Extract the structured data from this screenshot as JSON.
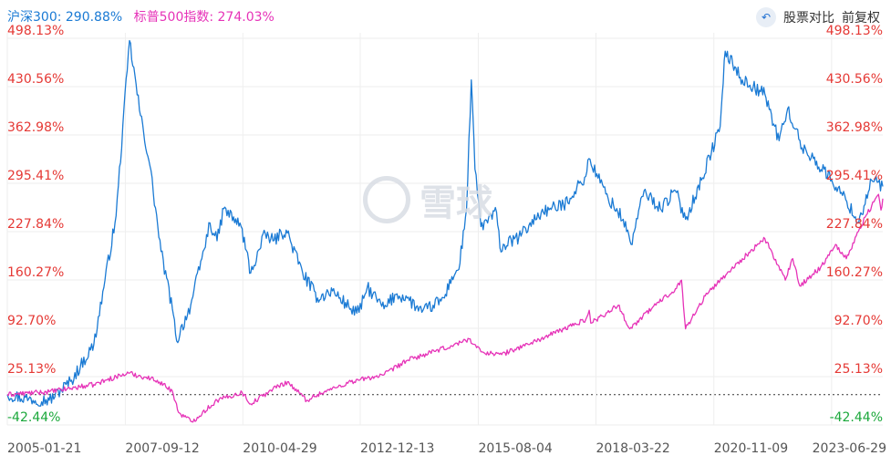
{
  "legend": {
    "hs300": "沪深300: 290.88%",
    "sp500": "标普500指数: 274.03%"
  },
  "controls": {
    "stock_compare": "股票对比",
    "adjust": "前复权"
  },
  "watermark": "雪球",
  "colors": {
    "hs300": "#1a7ad4",
    "sp500": "#e633b8",
    "positive_label": "#e53935",
    "negative_label": "#1ba83b",
    "grid": "#eeeeee",
    "baseline": "#333333"
  },
  "chart_data": {
    "type": "line",
    "ylim": [
      -42.44,
      498.13
    ],
    "y_ticks": [
      "498.13%",
      "430.56%",
      "362.98%",
      "295.41%",
      "227.84%",
      "160.27%",
      "92.70%",
      "25.13%",
      "-42.44%"
    ],
    "x_ticks": [
      "2005-01-21",
      "2007-09-12",
      "2010-04-29",
      "2012-12-13",
      "2015-08-04",
      "2018-03-22",
      "2020-11-09",
      "2023-06-29"
    ],
    "xlim": [
      "2005-01-21",
      "2024-08-20"
    ],
    "series": [
      {
        "name": "沪深300",
        "color": "#1a7ad4",
        "x": [
          "2005-01-21",
          "2005-07-15",
          "2005-12-30",
          "2006-06-30",
          "2006-12-29",
          "2007-03-30",
          "2007-06-29",
          "2007-10-16",
          "2008-01-14",
          "2008-03-31",
          "2008-06-30",
          "2008-09-30",
          "2008-11-04",
          "2009-02-27",
          "2009-05-29",
          "2009-08-04",
          "2009-09-30",
          "2009-11-24",
          "2010-04-15",
          "2010-07-02",
          "2010-10-29",
          "2010-12-31",
          "2011-04-18",
          "2011-08-31",
          "2011-12-30",
          "2012-04-30",
          "2012-09-28",
          "2012-12-03",
          "2013-02-08",
          "2013-06-25",
          "2013-09-30",
          "2013-12-31",
          "2014-04-30",
          "2014-07-31",
          "2014-10-31",
          "2014-12-31",
          "2015-02-27",
          "2015-04-30",
          "2015-06-08",
          "2015-07-08",
          "2015-08-26",
          "2015-12-31",
          "2016-01-28",
          "2016-06-30",
          "2016-12-30",
          "2017-06-30",
          "2017-12-29",
          "2018-01-24",
          "2018-06-29",
          "2018-10-31",
          "2019-01-03",
          "2019-04-19",
          "2019-08-30",
          "2019-12-31",
          "2020-03-23",
          "2020-07-31",
          "2020-12-31",
          "2021-02-10",
          "2021-06-30",
          "2021-12-31",
          "2022-04-26",
          "2022-07-05",
          "2022-10-31",
          "2023-01-31",
          "2023-06-30",
          "2023-10-31",
          "2024-02-05",
          "2024-05-20",
          "2024-08-20"
        ],
        "values": [
          0,
          -6,
          -8,
          20,
          70,
          160,
          250,
          495,
          390,
          320,
          200,
          120,
          75,
          125,
          190,
          240,
          215,
          260,
          235,
          170,
          225,
          215,
          230,
          170,
          135,
          145,
          120,
          115,
          150,
          120,
          140,
          135,
          115,
          125,
          135,
          165,
          175,
          260,
          440,
          315,
          235,
          255,
          205,
          220,
          255,
          265,
          305,
          330,
          275,
          245,
          210,
          285,
          260,
          285,
          245,
          300,
          375,
          480,
          440,
          420,
          355,
          400,
          345,
          330,
          300,
          270,
          240,
          300,
          291
        ]
      },
      {
        "name": "标普500指数",
        "color": "#e633b8",
        "x": [
          "2005-01-21",
          "2005-12-30",
          "2006-12-29",
          "2007-06-29",
          "2007-10-09",
          "2008-05-30",
          "2008-09-30",
          "2008-11-20",
          "2009-03-09",
          "2009-09-30",
          "2010-04-23",
          "2010-07-02",
          "2010-12-31",
          "2011-04-29",
          "2011-10-03",
          "2011-12-30",
          "2012-09-28",
          "2013-06-28",
          "2013-12-31",
          "2014-12-31",
          "2015-05-21",
          "2015-08-25",
          "2016-02-11",
          "2016-12-30",
          "2017-12-29",
          "2018-01-26",
          "2018-02-08",
          "2018-09-20",
          "2018-12-24",
          "2019-06-28",
          "2019-12-31",
          "2020-02-19",
          "2020-03-23",
          "2020-08-31",
          "2020-12-31",
          "2021-06-30",
          "2021-12-31",
          "2022-06-16",
          "2022-08-16",
          "2022-10-12",
          "2023-03-31",
          "2023-07-31",
          "2023-10-27",
          "2024-03-28",
          "2024-07-16",
          "2024-08-05",
          "2024-08-20"
        ],
        "values": [
          0,
          4,
          14,
          25,
          30,
          20,
          5,
          -25,
          -38,
          -8,
          3,
          -13,
          8,
          18,
          -8,
          0,
          18,
          28,
          48,
          68,
          78,
          60,
          56,
          78,
          105,
          118,
          100,
          125,
          92,
          122,
          148,
          160,
          92,
          138,
          160,
          190,
          218,
          160,
          190,
          152,
          178,
          210,
          190,
          248,
          280,
          258,
          274
        ]
      }
    ],
    "baseline": 0
  }
}
